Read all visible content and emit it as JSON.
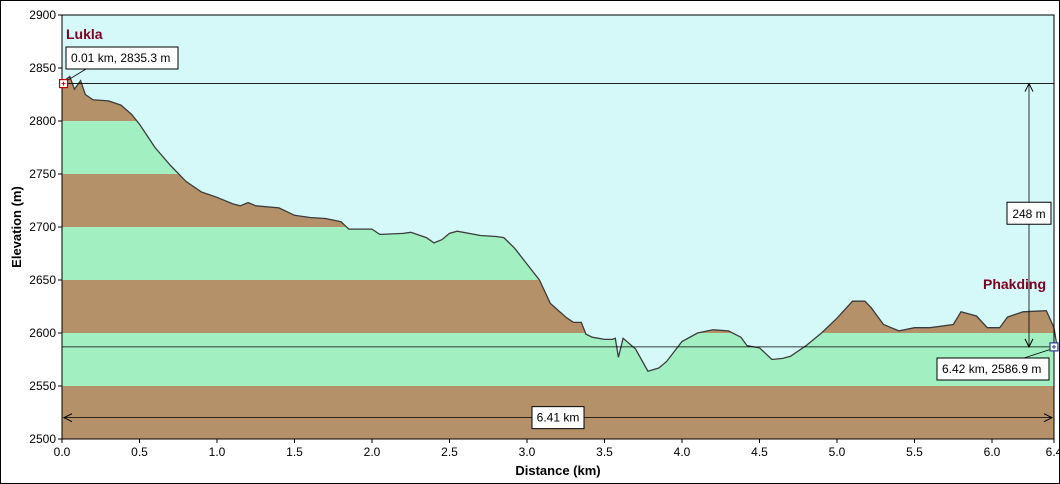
{
  "chart_data": {
    "type": "area",
    "xlabel": "Distance  (km)",
    "ylabel": "Elevation  (m)",
    "xlim": [
      0,
      6.4
    ],
    "ylim": [
      2500,
      2900
    ],
    "x_ticks": [
      "0.0",
      "0.5",
      "1.0",
      "1.5",
      "2.0",
      "2.5",
      "3.0",
      "3.5",
      "4.0",
      "4.5",
      "5.0",
      "5.5",
      "6.0",
      "6.4"
    ],
    "y_ticks": [
      "2500",
      "2550",
      "2600",
      "2650",
      "2700",
      "2750",
      "2800",
      "2850",
      "2900"
    ],
    "band_colors": [
      "#b5916a",
      "#a2f0c2"
    ],
    "sky_color": "#d5f9f9",
    "profile_color": "#b5916a",
    "profile": [
      [
        0.0,
        2836
      ],
      [
        0.05,
        2842
      ],
      [
        0.08,
        2830
      ],
      [
        0.12,
        2838
      ],
      [
        0.15,
        2825
      ],
      [
        0.2,
        2820
      ],
      [
        0.3,
        2819
      ],
      [
        0.38,
        2815
      ],
      [
        0.45,
        2806
      ],
      [
        0.5,
        2797
      ],
      [
        0.6,
        2775
      ],
      [
        0.7,
        2758
      ],
      [
        0.8,
        2743
      ],
      [
        0.9,
        2733
      ],
      [
        1.0,
        2728
      ],
      [
        1.1,
        2722
      ],
      [
        1.15,
        2720
      ],
      [
        1.2,
        2723
      ],
      [
        1.25,
        2720
      ],
      [
        1.4,
        2718
      ],
      [
        1.5,
        2711
      ],
      [
        1.6,
        2709
      ],
      [
        1.7,
        2708
      ],
      [
        1.8,
        2705
      ],
      [
        1.85,
        2698
      ],
      [
        2.0,
        2698
      ],
      [
        2.05,
        2693
      ],
      [
        2.2,
        2694
      ],
      [
        2.25,
        2695
      ],
      [
        2.35,
        2690
      ],
      [
        2.4,
        2685
      ],
      [
        2.45,
        2688
      ],
      [
        2.5,
        2694
      ],
      [
        2.55,
        2696
      ],
      [
        2.7,
        2692
      ],
      [
        2.8,
        2691
      ],
      [
        2.85,
        2690
      ],
      [
        2.92,
        2680
      ],
      [
        3.0,
        2665
      ],
      [
        3.08,
        2650
      ],
      [
        3.15,
        2628
      ],
      [
        3.25,
        2615
      ],
      [
        3.3,
        2610
      ],
      [
        3.35,
        2610
      ],
      [
        3.38,
        2599
      ],
      [
        3.42,
        2596
      ],
      [
        3.5,
        2594
      ],
      [
        3.55,
        2594
      ],
      [
        3.57,
        2595
      ],
      [
        3.59,
        2577
      ],
      [
        3.62,
        2595
      ],
      [
        3.7,
        2585
      ],
      [
        3.78,
        2564
      ],
      [
        3.85,
        2567
      ],
      [
        3.9,
        2573
      ],
      [
        4.0,
        2592
      ],
      [
        4.1,
        2600
      ],
      [
        4.2,
        2603
      ],
      [
        4.3,
        2602
      ],
      [
        4.38,
        2596
      ],
      [
        4.42,
        2588
      ],
      [
        4.5,
        2586
      ],
      [
        4.58,
        2575
      ],
      [
        4.65,
        2576
      ],
      [
        4.7,
        2578
      ],
      [
        4.8,
        2588
      ],
      [
        4.9,
        2600
      ],
      [
        5.0,
        2614
      ],
      [
        5.1,
        2630
      ],
      [
        5.18,
        2630
      ],
      [
        5.22,
        2624
      ],
      [
        5.3,
        2608
      ],
      [
        5.4,
        2602
      ],
      [
        5.5,
        2605
      ],
      [
        5.6,
        2605
      ],
      [
        5.75,
        2608
      ],
      [
        5.8,
        2620
      ],
      [
        5.9,
        2616
      ],
      [
        5.97,
        2605
      ],
      [
        6.05,
        2605
      ],
      [
        6.1,
        2615
      ],
      [
        6.2,
        2620
      ],
      [
        6.35,
        2621
      ],
      [
        6.4,
        2605
      ],
      [
        6.42,
        2587
      ]
    ],
    "annotations": [
      {
        "name": "lukla",
        "label": "Lukla",
        "callout": "0.01 km, 2835.3 m",
        "x": 0.01,
        "y": 2835.3
      },
      {
        "name": "phakding",
        "label": "Phakding",
        "callout": "6.42 km, 2586.9 m",
        "x": 6.42,
        "y": 2586.9
      }
    ],
    "vertical_span_label": "248 m",
    "horizontal_span_label": "6.41 km",
    "span_x": 6.4,
    "span_y": 2506
  }
}
